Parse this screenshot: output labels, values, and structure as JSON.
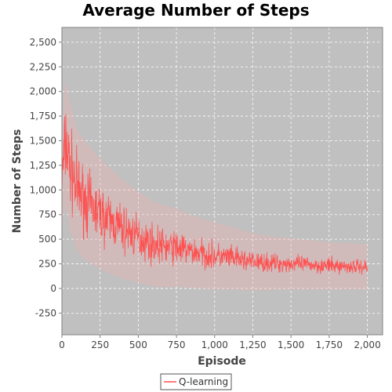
{
  "chart_data": {
    "type": "line",
    "title": "Average Number of Steps",
    "xlabel": "Episode",
    "ylabel": "Number of Steps",
    "xlim": [
      0,
      2100
    ],
    "ylim": [
      -470,
      2650
    ],
    "x_ticks": [
      0,
      250,
      500,
      750,
      1000,
      1250,
      1500,
      1750,
      2000
    ],
    "y_ticks": [
      -250,
      0,
      250,
      500,
      750,
      1000,
      1250,
      1500,
      1750,
      2000,
      2250,
      2500
    ],
    "x_tick_labels": [
      "0",
      "250",
      "500",
      "750",
      "1,000",
      "1,250",
      "1,500",
      "1,750",
      "2,000"
    ],
    "y_tick_labels": [
      "-250",
      "0",
      "250",
      "500",
      "750",
      "1,000",
      "1,250",
      "1,500",
      "1,750",
      "2,000",
      "2,250",
      "2,500"
    ],
    "grid": true,
    "legend_position": "bottom",
    "background_color": "#c0c0c0",
    "series": [
      {
        "name": "Q-learning",
        "color": "#ff5050",
        "band_color": "#f2b0b0",
        "x": [
          0,
          25,
          50,
          100,
          150,
          200,
          250,
          300,
          350,
          400,
          500,
          600,
          700,
          750,
          800,
          900,
          1000,
          1100,
          1250,
          1400,
          1500,
          1750,
          2000
        ],
        "values": [
          1100,
          1500,
          1250,
          1000,
          900,
          820,
          760,
          700,
          650,
          600,
          520,
          450,
          420,
          420,
          390,
          360,
          330,
          310,
          270,
          255,
          250,
          230,
          220
        ],
        "spread": [
          250,
          300,
          280,
          250,
          230,
          210,
          200,
          190,
          180,
          170,
          150,
          130,
          120,
          120,
          110,
          100,
          95,
          85,
          70,
          65,
          60,
          55,
          50
        ],
        "band": [
          500,
          650,
          650,
          620,
          600,
          580,
          560,
          540,
          520,
          500,
          460,
          430,
          410,
          400,
          380,
          360,
          340,
          320,
          290,
          270,
          260,
          240,
          230
        ]
      }
    ]
  }
}
